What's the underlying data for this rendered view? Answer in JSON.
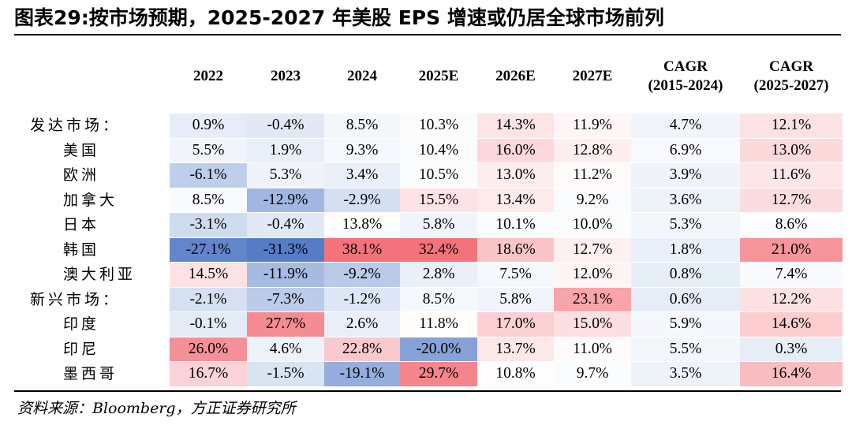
{
  "title": "图表29:按市场预期，2025-2027 年美股 EPS 增速或仍居全球市场前列",
  "source": "资料来源：Bloomberg，方正证券研究所",
  "colors": {
    "negative": "#4a72c4",
    "positive": "#f0505a",
    "neutral": "#ffffff"
  },
  "chart_data": {
    "type": "table",
    "columns": [
      "2022",
      "2023",
      "2024",
      "2025E",
      "2026E",
      "2027E",
      "CAGR\n(2015-2024)",
      "CAGR\n(2025-2027)"
    ],
    "rows": [
      {
        "label": "发达市场：",
        "values": [
          0.9,
          -0.4,
          8.5,
          10.3,
          14.3,
          11.9,
          4.7,
          12.1
        ],
        "display": [
          "0.9%",
          "-0.4%",
          "8.5%",
          "10.3%",
          "14.3%",
          "11.9%",
          "4.7%",
          "12.1%"
        ]
      },
      {
        "label": "美国",
        "values": [
          5.5,
          1.9,
          9.3,
          10.4,
          16.0,
          12.8,
          6.9,
          13.0
        ],
        "display": [
          "5.5%",
          "1.9%",
          "9.3%",
          "10.4%",
          "16.0%",
          "12.8%",
          "6.9%",
          "13.0%"
        ]
      },
      {
        "label": "欧洲",
        "values": [
          -6.1,
          5.3,
          3.4,
          10.5,
          13.0,
          11.2,
          3.9,
          11.6
        ],
        "display": [
          "-6.1%",
          "5.3%",
          "3.4%",
          "10.5%",
          "13.0%",
          "11.2%",
          "3.9%",
          "11.6%"
        ]
      },
      {
        "label": "加拿大",
        "values": [
          8.5,
          -12.9,
          -2.9,
          15.5,
          13.4,
          9.2,
          3.6,
          12.7
        ],
        "display": [
          "8.5%",
          "-12.9%",
          "-2.9%",
          "15.5%",
          "13.4%",
          "9.2%",
          "3.6%",
          "12.7%"
        ]
      },
      {
        "label": "日本",
        "values": [
          -3.1,
          -0.4,
          13.8,
          5.8,
          10.1,
          10.0,
          5.3,
          8.6
        ],
        "display": [
          "-3.1%",
          "-0.4%",
          "13.8%",
          "5.8%",
          "10.1%",
          "10.0%",
          "5.3%",
          "8.6%"
        ]
      },
      {
        "label": "韩国",
        "values": [
          -27.1,
          -31.3,
          38.1,
          32.4,
          18.6,
          12.7,
          1.8,
          21.0
        ],
        "display": [
          "-27.1%",
          "-31.3%",
          "38.1%",
          "32.4%",
          "18.6%",
          "12.7%",
          "1.8%",
          "21.0%"
        ]
      },
      {
        "label": "澳大利亚",
        "values": [
          14.5,
          -11.9,
          -9.2,
          2.8,
          7.5,
          12.0,
          0.8,
          7.4
        ],
        "display": [
          "14.5%",
          "-11.9%",
          "-9.2%",
          "2.8%",
          "7.5%",
          "12.0%",
          "0.8%",
          "7.4%"
        ]
      },
      {
        "label": "新兴市场：",
        "values": [
          -2.1,
          -7.3,
          -1.2,
          8.5,
          5.8,
          23.1,
          0.6,
          12.2
        ],
        "display": [
          "-2.1%",
          "-7.3%",
          "-1.2%",
          "8.5%",
          "5.8%",
          "23.1%",
          "0.6%",
          "12.2%"
        ]
      },
      {
        "label": "印度",
        "values": [
          -0.1,
          27.7,
          2.6,
          11.8,
          17.0,
          15.0,
          5.9,
          14.6
        ],
        "display": [
          "-0.1%",
          "27.7%",
          "2.6%",
          "11.8%",
          "17.0%",
          "15.0%",
          "5.9%",
          "14.6%"
        ]
      },
      {
        "label": "印尼",
        "values": [
          26.0,
          4.6,
          22.8,
          -20.0,
          13.7,
          11.0,
          5.5,
          0.3
        ],
        "display": [
          "26.0%",
          "4.6%",
          "22.8%",
          "-20.0%",
          "13.7%",
          "11.0%",
          "5.5%",
          "0.3%"
        ]
      },
      {
        "label": "墨西哥",
        "values": [
          16.7,
          -1.5,
          -19.1,
          29.7,
          10.8,
          9.7,
          3.5,
          16.4
        ],
        "display": [
          "16.7%",
          "-1.5%",
          "-19.1%",
          "29.7%",
          "10.8%",
          "9.7%",
          "3.5%",
          "16.4%"
        ]
      }
    ]
  }
}
